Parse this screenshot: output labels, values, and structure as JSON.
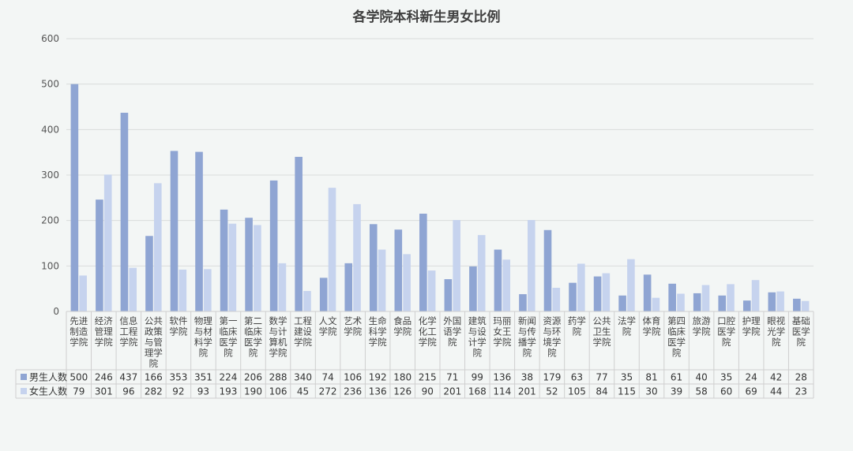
{
  "chart_data": {
    "type": "bar",
    "title": "各学院本科新生男女比例",
    "categories": [
      "先进制造学院",
      "经济管理学院",
      "信息工程学院",
      "公共政策与管理学院",
      "软件学院",
      "物理与材料学院",
      "第一临床医学院",
      "第二临床医学院",
      "数学与计算机学院",
      "工程建设学院",
      "人文学院",
      "艺术学院",
      "生命科学学院",
      "食品学院",
      "化学化工学院",
      "外国语学院",
      "建筑与设计学院",
      "玛丽女王学院",
      "新闻与传播学院",
      "资源与环境学院",
      "药学院",
      "公共卫生学院",
      "法学院",
      "体育学院",
      "第四临床医学院",
      "旅游学院",
      "口腔医学院",
      "护理学院",
      "眼视光学院",
      "基础医学院"
    ],
    "category_lines": [
      [
        "先进",
        "制造",
        "学院"
      ],
      [
        "经济",
        "管理",
        "学院"
      ],
      [
        "信息",
        "工程",
        "学院"
      ],
      [
        "公共",
        "政策",
        "与管",
        "理学",
        "院"
      ],
      [
        "软件",
        "学院"
      ],
      [
        "物理",
        "与材",
        "料学",
        "院"
      ],
      [
        "第一",
        "临床",
        "医学",
        "院"
      ],
      [
        "第二",
        "临床",
        "医学",
        "院"
      ],
      [
        "数学",
        "与计",
        "算机",
        "学院"
      ],
      [
        "工程",
        "建设",
        "学院"
      ],
      [
        "人文",
        "学院"
      ],
      [
        "艺术",
        "学院"
      ],
      [
        "生命",
        "科学",
        "学院"
      ],
      [
        "食品",
        "学院"
      ],
      [
        "化学",
        "化工",
        "学院"
      ],
      [
        "外国",
        "语学",
        "院"
      ],
      [
        "建筑",
        "与设",
        "计学",
        "院"
      ],
      [
        "玛丽",
        "女王",
        "学院"
      ],
      [
        "新闻",
        "与传",
        "播学",
        "院"
      ],
      [
        "资源",
        "与环",
        "境学",
        "院"
      ],
      [
        "药学",
        "院"
      ],
      [
        "公共",
        "卫生",
        "学院"
      ],
      [
        "法学",
        "院"
      ],
      [
        "体育",
        "学院"
      ],
      [
        "第四",
        "临床",
        "医学",
        "院"
      ],
      [
        "旅游",
        "学院"
      ],
      [
        "口腔",
        "医学",
        "院"
      ],
      [
        "护理",
        "学院"
      ],
      [
        "眼视",
        "光学",
        "院"
      ],
      [
        "基础",
        "医学",
        "院"
      ]
    ],
    "series": [
      {
        "name": "男生人数",
        "color": "#8fa5d3",
        "values": [
          500,
          246,
          437,
          166,
          353,
          351,
          224,
          206,
          288,
          340,
          74,
          106,
          192,
          180,
          215,
          71,
          99,
          136,
          38,
          179,
          63,
          77,
          35,
          81,
          61,
          40,
          35,
          24,
          42,
          28
        ]
      },
      {
        "name": "女生人数",
        "color": "#c6d3ee",
        "values": [
          79,
          301,
          96,
          282,
          92,
          93,
          193,
          190,
          106,
          45,
          272,
          236,
          136,
          126,
          90,
          201,
          168,
          114,
          201,
          52,
          105,
          84,
          115,
          30,
          39,
          58,
          60,
          69,
          44,
          23
        ]
      }
    ],
    "y_ticks": [
      0,
      100,
      200,
      300,
      400,
      500,
      600
    ],
    "ylim": [
      0,
      600
    ],
    "grid": true,
    "legend": "data-table"
  }
}
